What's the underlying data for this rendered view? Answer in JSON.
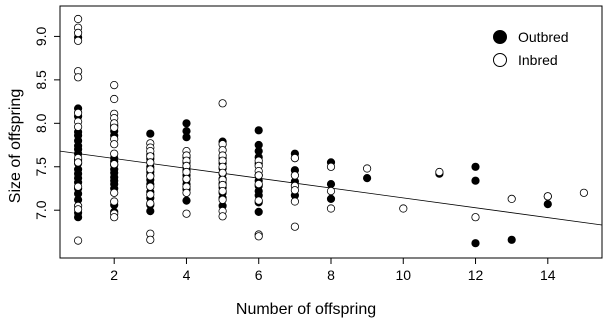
{
  "chart_data": {
    "type": "scatter",
    "title": "",
    "xlabel": "Number of offspring",
    "ylabel": "Size of offspring",
    "xlim": [
      0.5,
      15.5
    ],
    "ylim": [
      6.45,
      9.35
    ],
    "x_ticks": [
      2,
      4,
      6,
      8,
      10,
      12,
      14
    ],
    "x_tick_labels": [
      "2",
      "4",
      "6",
      "8",
      "10",
      "12",
      "14"
    ],
    "y_ticks": [
      7.0,
      7.5,
      8.0,
      8.5,
      9.0
    ],
    "y_tick_labels": [
      "7.0",
      "7.5",
      "8.0",
      "8.5",
      "9.0"
    ],
    "grid": false,
    "legend_position": "top-right",
    "series": [
      {
        "name": "Outbred",
        "marker": "filled-circle",
        "color": "#000000",
        "points": [
          [
            1,
            8.99
          ],
          [
            1,
            8.17
          ],
          [
            1,
            8.08
          ],
          [
            1,
            7.9
          ],
          [
            1,
            7.86
          ],
          [
            1,
            7.8
          ],
          [
            1,
            7.74
          ],
          [
            1,
            7.7
          ],
          [
            1,
            7.65
          ],
          [
            1,
            7.58
          ],
          [
            1,
            7.54
          ],
          [
            1,
            7.47
          ],
          [
            1,
            7.42
          ],
          [
            1,
            7.37
          ],
          [
            1,
            7.32
          ],
          [
            1,
            7.25
          ],
          [
            1,
            7.19
          ],
          [
            1,
            7.12
          ],
          [
            1,
            6.97
          ],
          [
            1,
            6.92
          ],
          [
            2,
            7.97
          ],
          [
            2,
            7.91
          ],
          [
            2,
            7.86
          ],
          [
            2,
            7.6
          ],
          [
            2,
            7.56
          ],
          [
            2,
            7.52
          ],
          [
            2,
            7.47
          ],
          [
            2,
            7.43
          ],
          [
            2,
            7.38
          ],
          [
            2,
            7.34
          ],
          [
            2,
            7.3
          ],
          [
            2,
            7.25
          ],
          [
            2,
            7.06
          ],
          [
            2,
            6.98
          ],
          [
            3,
            7.88
          ],
          [
            3,
            7.64
          ],
          [
            3,
            7.59
          ],
          [
            3,
            7.5
          ],
          [
            3,
            7.44
          ],
          [
            3,
            7.4
          ],
          [
            3,
            7.35
          ],
          [
            3,
            7.3
          ],
          [
            3,
            7.21
          ],
          [
            3,
            7.14
          ],
          [
            3,
            7.06
          ],
          [
            3,
            6.99
          ],
          [
            4,
            8.0
          ],
          [
            4,
            7.91
          ],
          [
            4,
            7.84
          ],
          [
            4,
            7.61
          ],
          [
            4,
            7.55
          ],
          [
            4,
            7.5
          ],
          [
            4,
            7.46
          ],
          [
            4,
            7.4
          ],
          [
            4,
            7.35
          ],
          [
            4,
            7.3
          ],
          [
            4,
            7.24
          ],
          [
            4,
            7.11
          ],
          [
            5,
            7.79
          ],
          [
            5,
            7.6
          ],
          [
            5,
            7.54
          ],
          [
            5,
            7.48
          ],
          [
            5,
            7.42
          ],
          [
            5,
            7.36
          ],
          [
            5,
            7.31
          ],
          [
            5,
            7.26
          ],
          [
            5,
            7.2
          ],
          [
            5,
            7.14
          ],
          [
            5,
            7.05
          ],
          [
            6,
            7.92
          ],
          [
            6,
            7.75
          ],
          [
            6,
            7.68
          ],
          [
            6,
            7.61
          ],
          [
            6,
            7.54
          ],
          [
            6,
            7.4
          ],
          [
            6,
            7.34
          ],
          [
            6,
            7.28
          ],
          [
            6,
            7.22
          ],
          [
            6,
            7.17
          ],
          [
            6,
            7.09
          ],
          [
            6,
            6.98
          ],
          [
            7,
            7.65
          ],
          [
            7,
            7.6
          ],
          [
            7,
            7.46
          ],
          [
            7,
            7.33
          ],
          [
            7,
            7.17
          ],
          [
            8,
            7.55
          ],
          [
            8,
            7.3
          ],
          [
            8,
            7.13
          ],
          [
            9,
            7.37
          ],
          [
            11,
            7.42
          ],
          [
            12,
            7.5
          ],
          [
            12,
            7.34
          ],
          [
            12,
            6.62
          ],
          [
            13,
            6.66
          ],
          [
            14,
            7.16
          ],
          [
            14,
            7.07
          ]
        ]
      },
      {
        "name": "Inbred",
        "marker": "open-circle",
        "color": "#000000",
        "points": [
          [
            1,
            9.2
          ],
          [
            1,
            9.1
          ],
          [
            1,
            9.04
          ],
          [
            1,
            8.95
          ],
          [
            1,
            8.6
          ],
          [
            1,
            8.53
          ],
          [
            1,
            8.12
          ],
          [
            1,
            8.02
          ],
          [
            1,
            7.96
          ],
          [
            1,
            7.6
          ],
          [
            1,
            7.55
          ],
          [
            1,
            7.27
          ],
          [
            1,
            7.05
          ],
          [
            1,
            7.01
          ],
          [
            1,
            6.65
          ],
          [
            2,
            8.44
          ],
          [
            2,
            8.28
          ],
          [
            2,
            8.11
          ],
          [
            2,
            8.06
          ],
          [
            2,
            8.0
          ],
          [
            2,
            7.95
          ],
          [
            2,
            7.82
          ],
          [
            2,
            7.76
          ],
          [
            2,
            7.65
          ],
          [
            2,
            7.53
          ],
          [
            2,
            7.2
          ],
          [
            2,
            7.1
          ],
          [
            2,
            6.96
          ],
          [
            2,
            6.92
          ],
          [
            3,
            7.77
          ],
          [
            3,
            7.72
          ],
          [
            3,
            7.68
          ],
          [
            3,
            7.62
          ],
          [
            3,
            7.55
          ],
          [
            3,
            7.47
          ],
          [
            3,
            7.39
          ],
          [
            3,
            7.27
          ],
          [
            3,
            7.18
          ],
          [
            3,
            7.08
          ],
          [
            3,
            6.73
          ],
          [
            3,
            6.66
          ],
          [
            4,
            7.68
          ],
          [
            4,
            7.63
          ],
          [
            4,
            7.57
          ],
          [
            4,
            7.51
          ],
          [
            4,
            7.44
          ],
          [
            4,
            7.36
          ],
          [
            4,
            7.27
          ],
          [
            4,
            7.2
          ],
          [
            4,
            6.96
          ],
          [
            5,
            8.23
          ],
          [
            5,
            7.76
          ],
          [
            5,
            7.69
          ],
          [
            5,
            7.63
          ],
          [
            5,
            7.57
          ],
          [
            5,
            7.5
          ],
          [
            5,
            7.43
          ],
          [
            5,
            7.35
          ],
          [
            5,
            7.29
          ],
          [
            5,
            7.22
          ],
          [
            5,
            7.12
          ],
          [
            5,
            6.99
          ],
          [
            5,
            6.93
          ],
          [
            6,
            7.57
          ],
          [
            6,
            7.51
          ],
          [
            6,
            7.45
          ],
          [
            6,
            7.4
          ],
          [
            6,
            7.3
          ],
          [
            6,
            7.11
          ],
          [
            6,
            6.72
          ],
          [
            6,
            6.7
          ],
          [
            7,
            7.6
          ],
          [
            7,
            7.4
          ],
          [
            7,
            7.28
          ],
          [
            7,
            7.23
          ],
          [
            7,
            7.1
          ],
          [
            7,
            6.81
          ],
          [
            8,
            7.5
          ],
          [
            8,
            7.22
          ],
          [
            8,
            7.02
          ],
          [
            9,
            7.48
          ],
          [
            10,
            7.02
          ],
          [
            11,
            7.44
          ],
          [
            12,
            6.92
          ],
          [
            13,
            7.13
          ],
          [
            14,
            7.16
          ],
          [
            15,
            7.2
          ]
        ]
      }
    ],
    "trendline": {
      "x": [
        0.5,
        15.5
      ],
      "y": [
        7.68,
        6.83
      ],
      "color": "#000000"
    }
  }
}
